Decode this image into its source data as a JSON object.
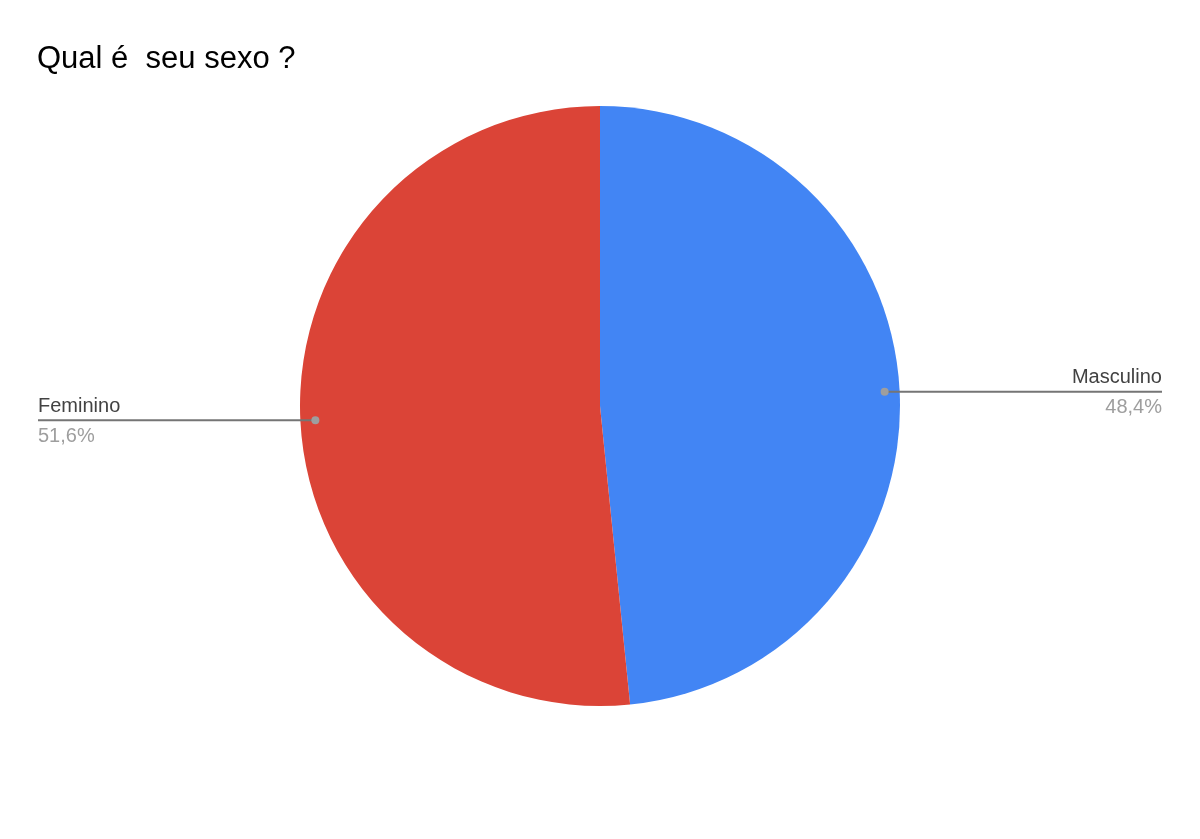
{
  "chart_data": {
    "type": "pie",
    "title": "Qual é  seu sexo ?",
    "categories": [
      "Masculino",
      "Feminino"
    ],
    "values": [
      48.4,
      51.6
    ],
    "colors": [
      "#4285f4",
      "#db4437"
    ],
    "value_labels": [
      "48,4%",
      "51,6%"
    ]
  }
}
